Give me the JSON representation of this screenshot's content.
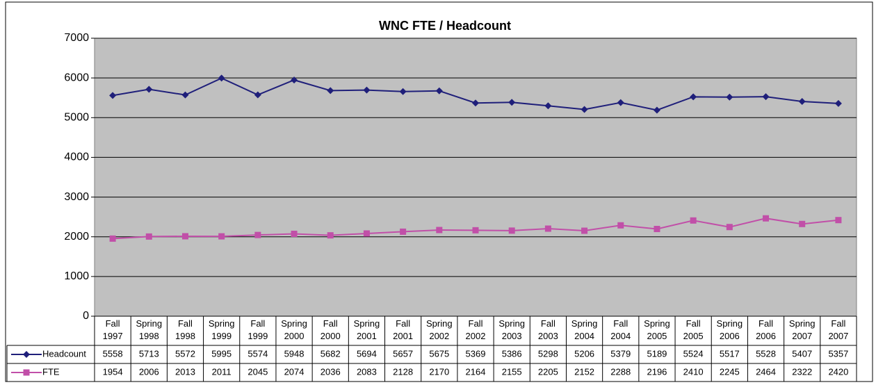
{
  "chart_data": {
    "type": "line",
    "title": "WNC FTE / Headcount",
    "categories": [
      "Fall 1997",
      "Spring 1998",
      "Fall 1998",
      "Spring 1999",
      "Fall 1999",
      "Spring 2000",
      "Fall 2000",
      "Spring 2001",
      "Fall 2001",
      "Spring 2002",
      "Fall 2002",
      "Spring 2003",
      "Fall 2003",
      "Spring 2004",
      "Fall 2004",
      "Spring 2005",
      "Fall 2005",
      "Spring 2006",
      "Fall 2006",
      "Spring 2007",
      "Fall 2007"
    ],
    "series": [
      {
        "name": "Headcount",
        "color": "#1f1f7a",
        "marker": "diamond",
        "values": [
          5558,
          5713,
          5572,
          5995,
          5574,
          5948,
          5682,
          5694,
          5657,
          5675,
          5369,
          5386,
          5298,
          5206,
          5379,
          5189,
          5524,
          5517,
          5528,
          5407,
          5357
        ]
      },
      {
        "name": "FTE",
        "color": "#c14fa8",
        "marker": "square",
        "values": [
          1954,
          2006,
          2013,
          2011,
          2045,
          2074,
          2036,
          2083,
          2128,
          2170,
          2164,
          2155,
          2205,
          2152,
          2288,
          2196,
          2410,
          2245,
          2464,
          2322,
          2420
        ]
      }
    ],
    "ylim": [
      0,
      7000
    ],
    "yticks": [
      0,
      1000,
      2000,
      3000,
      4000,
      5000,
      6000,
      7000
    ],
    "grid": true,
    "data_table": true
  }
}
